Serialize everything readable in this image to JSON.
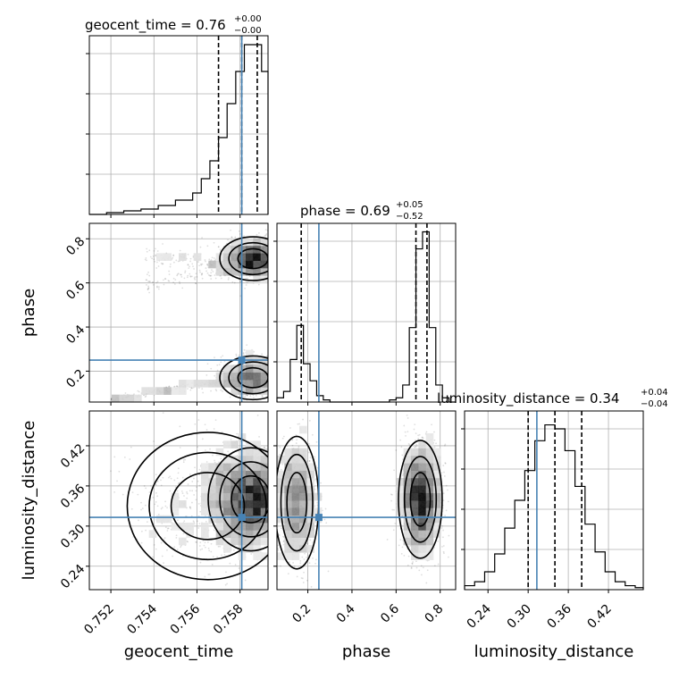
{
  "chart_data": {
    "type": "corner",
    "parameters": [
      "geocent_time",
      "phase",
      "luminosity_distance"
    ],
    "truth": {
      "geocent_time": 0.75808,
      "phase": 0.25,
      "luminosity_distance": 0.313
    },
    "colors": {
      "truth": "#4682b4",
      "contour": "#000000",
      "grid": "#b0b0b0"
    },
    "titles": {
      "geocent_time": {
        "prefix": "geocent_time = 0.76",
        "plus": "+0.00",
        "minus": "−0.00"
      },
      "phase": {
        "prefix": "phase = 0.69",
        "plus": "+0.05",
        "minus": "−0.52"
      },
      "luminosity_distance": {
        "prefix": "luminosity_distance = 0.34",
        "plus": "+0.04",
        "minus": "−0.04"
      }
    },
    "axes": {
      "geocent_time": {
        "lim": [
          0.751,
          0.7593
        ],
        "ticks": [
          0.752,
          0.754,
          0.756,
          0.758
        ],
        "ticklabels": [
          "0.752",
          "0.754",
          "0.756",
          "0.758"
        ],
        "label": "geocent_time"
      },
      "phase": {
        "lim": [
          0.06,
          0.87
        ],
        "ticks": [
          0.2,
          0.4,
          0.6,
          0.8
        ],
        "ticklabels": [
          "0.2",
          "0.4",
          "0.6",
          "0.8"
        ],
        "label": "phase"
      },
      "luminosity_distance": {
        "lim": [
          0.205,
          0.472
        ],
        "ticks": [
          0.24,
          0.3,
          0.36,
          0.42
        ],
        "ticklabels": [
          "0.24",
          "0.30",
          "0.36",
          "0.42"
        ],
        "label": "luminosity_distance"
      }
    },
    "histograms": {
      "geocent_time": {
        "edges": [
          0.751,
          0.7518,
          0.7526,
          0.7534,
          0.7542,
          0.755,
          0.7558,
          0.7562,
          0.7566,
          0.757,
          0.7574,
          0.7578,
          0.7582,
          0.7586,
          0.759,
          0.7593
        ],
        "counts": [
          0,
          1,
          2,
          3,
          5,
          8,
          12,
          20,
          30,
          43,
          62,
          80,
          95,
          95,
          80
        ],
        "ymax": 100,
        "quantiles": [
          0.757,
          0.75808,
          0.7588
        ]
      },
      "phase": {
        "edges": [
          0.06,
          0.09,
          0.12,
          0.15,
          0.18,
          0.21,
          0.24,
          0.27,
          0.3,
          0.33,
          0.36,
          0.54,
          0.57,
          0.6,
          0.63,
          0.66,
          0.69,
          0.72,
          0.75,
          0.78,
          0.81,
          0.84,
          0.87
        ],
        "counts": [
          2,
          5,
          20,
          36,
          18,
          10,
          3,
          1,
          0,
          0,
          0,
          0,
          1,
          2,
          8,
          35,
          72,
          80,
          35,
          8,
          2,
          0
        ],
        "ymax": 84,
        "quantiles": [
          0.17,
          0.69,
          0.74
        ]
      },
      "luminosity_distance": {
        "edges": [
          0.205,
          0.22,
          0.235,
          0.25,
          0.265,
          0.28,
          0.295,
          0.31,
          0.325,
          0.34,
          0.355,
          0.37,
          0.385,
          0.4,
          0.415,
          0.43,
          0.445,
          0.46,
          0.472
        ],
        "counts": [
          2,
          4,
          9,
          18,
          31,
          45,
          60,
          75,
          83,
          81,
          70,
          52,
          33,
          19,
          9,
          4,
          2,
          1
        ],
        "ymax": 90,
        "quantiles": [
          0.3,
          0.34,
          0.38
        ]
      }
    }
  }
}
